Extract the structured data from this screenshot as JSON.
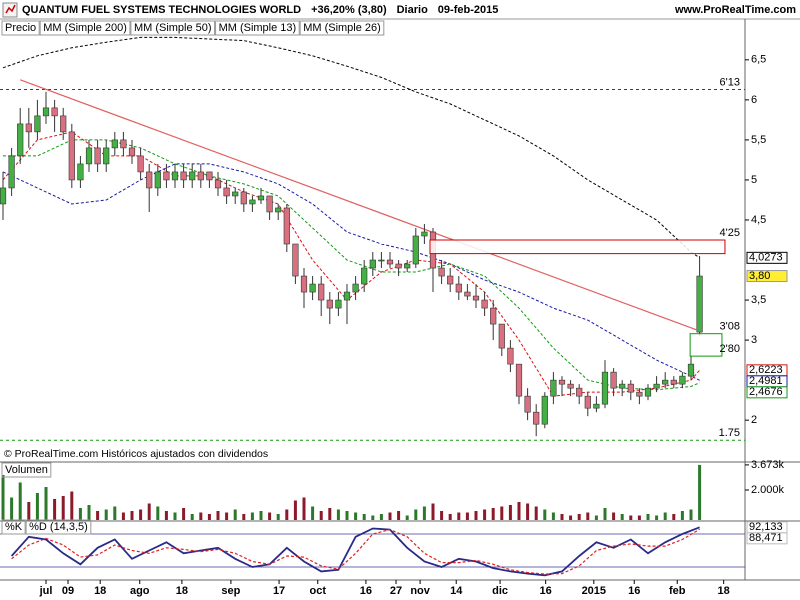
{
  "header": {
    "title": "QUANTUM FUEL SYSTEMS TECHNOLOGIES WORLD",
    "change": "+36,20% (3,80)",
    "period": "Diario",
    "date": "09-feb-2015",
    "site": "www.ProRealTime.com"
  },
  "footer": "© ProRealTime.com  Históricos ajustados con dividendos",
  "chart_data": [
    {
      "type": "candlestick",
      "name": "Precio",
      "up_color": "#44b044",
      "down_color": "#d97080",
      "xlim": [
        -0.35,
        86.28
      ],
      "ylim": [
        1.69,
        6.81
      ],
      "yticks": [
        2,
        3,
        {
          "value": 3.5,
          "label": "3,5"
        },
        {
          "value": 4.5,
          "label": "4,5"
        },
        5,
        {
          "value": 5.5,
          "label": "5,5"
        },
        6,
        {
          "value": 6.5,
          "label": "6,5"
        }
      ],
      "candles": [
        [
          4.7,
          5.1,
          4.5,
          4.9
        ],
        [
          4.9,
          5.4,
          4.8,
          5.3
        ],
        [
          5.3,
          5.9,
          5.2,
          5.7
        ],
        [
          5.7,
          5.9,
          5.4,
          5.6
        ],
        [
          5.6,
          6.0,
          5.5,
          5.8
        ],
        [
          5.8,
          6.1,
          5.7,
          5.9
        ],
        [
          5.9,
          6.0,
          5.6,
          5.8
        ],
        [
          5.8,
          5.9,
          5.5,
          5.6
        ],
        [
          5.6,
          5.7,
          4.9,
          5.0
        ],
        [
          5.0,
          5.3,
          4.9,
          5.2
        ],
        [
          5.2,
          5.5,
          5.1,
          5.4
        ],
        [
          5.4,
          5.5,
          5.1,
          5.2
        ],
        [
          5.2,
          5.5,
          5.1,
          5.4
        ],
        [
          5.4,
          5.6,
          5.3,
          5.5
        ],
        [
          5.5,
          5.6,
          5.3,
          5.4
        ],
        [
          5.4,
          5.5,
          5.2,
          5.3
        ],
        [
          5.3,
          5.4,
          5.0,
          5.1
        ],
        [
          5.1,
          5.2,
          4.6,
          4.9
        ],
        [
          4.9,
          5.2,
          4.8,
          5.1
        ],
        [
          5.1,
          5.2,
          4.9,
          5.0
        ],
        [
          5.0,
          5.2,
          4.9,
          5.1
        ],
        [
          5.1,
          5.2,
          4.9,
          5.0
        ],
        [
          5.0,
          5.2,
          4.9,
          5.1
        ],
        [
          5.1,
          5.2,
          4.9,
          5.0
        ],
        [
          5.1,
          5.1,
          4.9,
          5.0
        ],
        [
          5.0,
          5.1,
          4.8,
          4.9
        ],
        [
          4.9,
          5.0,
          4.7,
          4.8
        ],
        [
          4.8,
          4.9,
          4.7,
          4.85
        ],
        [
          4.85,
          4.9,
          4.6,
          4.7
        ],
        [
          4.7,
          4.8,
          4.6,
          4.75
        ],
        [
          4.75,
          4.9,
          4.7,
          4.8
        ],
        [
          4.8,
          4.8,
          4.5,
          4.6
        ],
        [
          4.6,
          4.7,
          4.5,
          4.65
        ],
        [
          4.65,
          4.7,
          4.1,
          4.2
        ],
        [
          4.2,
          4.2,
          3.7,
          3.8
        ],
        [
          3.8,
          3.9,
          3.4,
          3.6
        ],
        [
          3.6,
          3.8,
          3.5,
          3.7
        ],
        [
          3.7,
          3.8,
          3.3,
          3.5
        ],
        [
          3.5,
          3.6,
          3.2,
          3.4
        ],
        [
          3.4,
          3.6,
          3.3,
          3.5
        ],
        [
          3.5,
          3.7,
          3.2,
          3.6
        ],
        [
          3.6,
          3.8,
          3.5,
          3.7
        ],
        [
          3.7,
          4.0,
          3.6,
          3.9
        ],
        [
          3.9,
          4.1,
          3.8,
          4.0
        ],
        [
          4.0,
          4.1,
          3.9,
          4.0
        ],
        [
          4.0,
          4.1,
          3.9,
          3.95
        ],
        [
          3.95,
          4.0,
          3.8,
          3.9
        ],
        [
          3.9,
          4.0,
          3.85,
          3.95
        ],
        [
          3.95,
          4.4,
          3.9,
          4.3
        ],
        [
          4.3,
          4.45,
          4.2,
          4.35
        ],
        [
          4.35,
          4.4,
          3.6,
          3.9
        ],
        [
          3.9,
          4.0,
          3.7,
          3.8
        ],
        [
          3.8,
          3.9,
          3.6,
          3.7
        ],
        [
          3.7,
          3.8,
          3.5,
          3.6
        ],
        [
          3.6,
          3.7,
          3.5,
          3.55
        ],
        [
          3.55,
          3.7,
          3.4,
          3.5
        ],
        [
          3.5,
          3.6,
          3.3,
          3.4
        ],
        [
          3.4,
          3.5,
          3.0,
          3.2
        ],
        [
          3.2,
          3.2,
          2.8,
          2.9
        ],
        [
          2.9,
          3.0,
          2.6,
          2.7
        ],
        [
          2.7,
          2.7,
          2.2,
          2.3
        ],
        [
          2.3,
          2.4,
          2.0,
          2.1
        ],
        [
          2.1,
          2.2,
          1.8,
          1.95
        ],
        [
          1.95,
          2.35,
          1.9,
          2.3
        ],
        [
          2.3,
          2.6,
          2.2,
          2.5
        ],
        [
          2.5,
          2.55,
          2.3,
          2.45
        ],
        [
          2.45,
          2.5,
          2.3,
          2.4
        ],
        [
          2.4,
          2.45,
          2.2,
          2.3
        ],
        [
          2.3,
          2.35,
          2.05,
          2.15
        ],
        [
          2.15,
          2.3,
          2.1,
          2.2
        ],
        [
          2.2,
          2.75,
          2.15,
          2.6
        ],
        [
          2.6,
          2.65,
          2.3,
          2.4
        ],
        [
          2.4,
          2.5,
          2.3,
          2.45
        ],
        [
          2.45,
          2.5,
          2.25,
          2.35
        ],
        [
          2.35,
          2.4,
          2.2,
          2.3
        ],
        [
          2.3,
          2.45,
          2.25,
          2.4
        ],
        [
          2.4,
          2.55,
          2.35,
          2.45
        ],
        [
          2.45,
          2.6,
          2.4,
          2.5
        ],
        [
          2.5,
          2.55,
          2.4,
          2.45
        ],
        [
          2.45,
          2.6,
          2.4,
          2.55
        ],
        [
          2.55,
          2.8,
          2.5,
          2.7
        ],
        [
          3.1,
          4.05,
          3.05,
          3.8
        ]
      ],
      "close_label": "3,80",
      "close_color": "#ffee33",
      "series": [
        {
          "name": "MM (Simple 200)",
          "color": "#000000",
          "x": [
            0,
            4,
            8,
            12,
            16,
            20,
            24,
            28,
            32,
            36,
            40,
            44,
            48,
            52,
            56,
            60,
            64,
            68,
            72,
            76,
            80,
            81
          ],
          "values": [
            6.4,
            6.55,
            6.65,
            6.72,
            6.78,
            6.78,
            6.76,
            6.74,
            6.65,
            6.55,
            6.42,
            6.28,
            6.1,
            5.95,
            5.75,
            5.55,
            5.3,
            5.0,
            4.75,
            4.5,
            4.1,
            4.0273
          ],
          "last_label": "4,0273"
        },
        {
          "name": "MM (Simple 50)",
          "color": "#1a1aa6",
          "x": [
            0,
            4,
            8,
            12,
            16,
            20,
            24,
            28,
            32,
            36,
            40,
            44,
            48,
            52,
            56,
            60,
            64,
            68,
            72,
            76,
            80,
            81
          ],
          "values": [
            5.1,
            4.9,
            4.7,
            4.75,
            5.0,
            5.2,
            5.2,
            5.1,
            4.95,
            4.7,
            4.35,
            4.2,
            4.1,
            3.95,
            3.75,
            3.6,
            3.4,
            3.25,
            3.0,
            2.75,
            2.55,
            2.4981
          ],
          "last_label": "2,4981"
        },
        {
          "name": "MM (Simple 13)",
          "color": "#dd1111",
          "x": [
            0,
            4,
            8,
            12,
            16,
            20,
            24,
            28,
            32,
            36,
            40,
            44,
            48,
            52,
            56,
            60,
            64,
            68,
            72,
            76,
            80,
            81
          ],
          "values": [
            5.0,
            5.5,
            5.6,
            5.3,
            5.3,
            5.05,
            5.05,
            4.85,
            4.7,
            4.0,
            3.5,
            3.85,
            4.0,
            3.95,
            3.6,
            3.0,
            2.3,
            2.35,
            2.35,
            2.4,
            2.5,
            2.6223
          ],
          "last_label": "2,6223"
        },
        {
          "name": "MM (Simple 26)",
          "color": "#119911",
          "x": [
            0,
            4,
            8,
            12,
            16,
            20,
            24,
            28,
            32,
            36,
            40,
            44,
            48,
            52,
            56,
            60,
            64,
            68,
            72,
            76,
            80,
            81
          ],
          "values": [
            5.3,
            5.3,
            5.5,
            5.5,
            5.4,
            5.2,
            5.05,
            4.95,
            4.8,
            4.4,
            4.0,
            3.85,
            3.85,
            3.95,
            3.8,
            3.4,
            2.9,
            2.5,
            2.4,
            2.38,
            2.42,
            2.4676
          ],
          "last_label": "2,4676"
        }
      ],
      "trendline": {
        "x": [
          2.0,
          80.6
        ],
        "values": [
          6.25,
          3.13
        ],
        "color": "#e06060"
      },
      "levels": [
        {
          "value": 6.13,
          "label": "6'13",
          "color": "#cc0000"
        },
        {
          "value": 1.75,
          "label": "1.75",
          "color": "#119911"
        }
      ],
      "zones": [
        {
          "x": [
            49.65,
            83.95
          ],
          "top": 4.25,
          "bottom": 4.08,
          "color": "#cc0000",
          "labels": [
            "4'25"
          ]
        },
        {
          "x": [
            79.9,
            83.6
          ],
          "top": 3.08,
          "bottom": 2.8,
          "color": "#119911",
          "labels": [
            "3'08",
            "2'80"
          ]
        }
      ]
    },
    {
      "type": "bar",
      "title": "Volumen",
      "xlim": [
        -0.35,
        86.28
      ],
      "ylim": [
        0,
        3800
      ],
      "yticks": [
        {
          "value": 2000,
          "label": "2.000k"
        },
        {
          "value": 3673,
          "label": "3.673k"
        }
      ],
      "values": [
        3000,
        1500,
        2500,
        1200,
        1800,
        2200,
        1400,
        1600,
        1900,
        800,
        1000,
        600,
        700,
        900,
        500,
        600,
        700,
        1100,
        900,
        600,
        500,
        800,
        400,
        500,
        400,
        600,
        500,
        700,
        400,
        500,
        600,
        500,
        400,
        700,
        1300,
        1500,
        900,
        600,
        800,
        700,
        600,
        500,
        400,
        300,
        400,
        500,
        600,
        300,
        700,
        900,
        1100,
        600,
        400,
        500,
        500,
        600,
        700,
        800,
        900,
        1000,
        1200,
        1100,
        900,
        700,
        500,
        400,
        300,
        400,
        500,
        300,
        800,
        500,
        400,
        300,
        300,
        400,
        300,
        500,
        400,
        600,
        700,
        3673
      ]
    },
    {
      "type": "line",
      "xlim": [
        -0.35,
        86.28
      ],
      "ylim": [
        0,
        100
      ],
      "hlines": [
        20,
        80
      ],
      "xticks": [
        {
          "value": 5.0,
          "label": "jul"
        },
        {
          "value": 7.56,
          "label": "09"
        },
        {
          "value": 11.3,
          "label": "18"
        },
        {
          "value": 15.9,
          "label": "ago"
        },
        {
          "value": 20.8,
          "label": "18"
        },
        {
          "value": 26.5,
          "label": "sep"
        },
        {
          "value": 32.1,
          "label": "17"
        },
        {
          "value": 36.6,
          "label": "oct"
        },
        {
          "value": 42.2,
          "label": "16"
        },
        {
          "value": 45.7,
          "label": "27"
        },
        {
          "value": 48.5,
          "label": "nov"
        },
        {
          "value": 52.7,
          "label": "14"
        },
        {
          "value": 57.8,
          "label": "dic"
        },
        {
          "value": 63.1,
          "label": "16"
        },
        {
          "value": 68.7,
          "label": "2015"
        },
        {
          "value": 73.4,
          "label": "16"
        },
        {
          "value": 78.4,
          "label": "feb"
        },
        {
          "value": 83.8,
          "label": "18"
        }
      ],
      "series": [
        {
          "name": "%K",
          "color": "#2a2a88",
          "x": [
            1,
            3,
            5,
            7,
            9,
            11,
            13,
            15,
            17,
            19,
            21,
            23,
            25,
            27,
            29,
            31,
            33,
            35,
            37,
            39,
            41,
            43,
            45,
            47,
            49,
            51,
            53,
            55,
            57,
            59,
            61,
            63,
            65,
            67,
            69,
            71,
            73,
            75,
            77,
            79,
            81
          ],
          "values": [
            40,
            75,
            70,
            45,
            25,
            55,
            70,
            35,
            50,
            65,
            45,
            50,
            55,
            35,
            20,
            25,
            55,
            30,
            12,
            15,
            75,
            90,
            88,
            55,
            30,
            20,
            35,
            30,
            18,
            12,
            8,
            5,
            12,
            40,
            65,
            55,
            70,
            45,
            65,
            80,
            92.133
          ],
          "last_label": "92,133"
        },
        {
          "name": "%D (14,3,5)",
          "color": "#dd2222",
          "x": [
            1,
            3,
            5,
            7,
            9,
            11,
            13,
            15,
            17,
            19,
            21,
            23,
            25,
            27,
            29,
            31,
            33,
            35,
            37,
            39,
            41,
            43,
            45,
            47,
            49,
            51,
            53,
            55,
            57,
            59,
            61,
            63,
            65,
            67,
            69,
            71,
            73,
            75,
            77,
            79,
            81
          ],
          "values": [
            35,
            60,
            72,
            60,
            38,
            42,
            60,
            50,
            45,
            55,
            52,
            48,
            52,
            45,
            30,
            25,
            40,
            38,
            22,
            16,
            45,
            80,
            88,
            75,
            45,
            28,
            28,
            32,
            25,
            15,
            10,
            7,
            8,
            22,
            50,
            58,
            62,
            58,
            58,
            70,
            88.471
          ],
          "last_label": "88,471"
        }
      ]
    }
  ]
}
